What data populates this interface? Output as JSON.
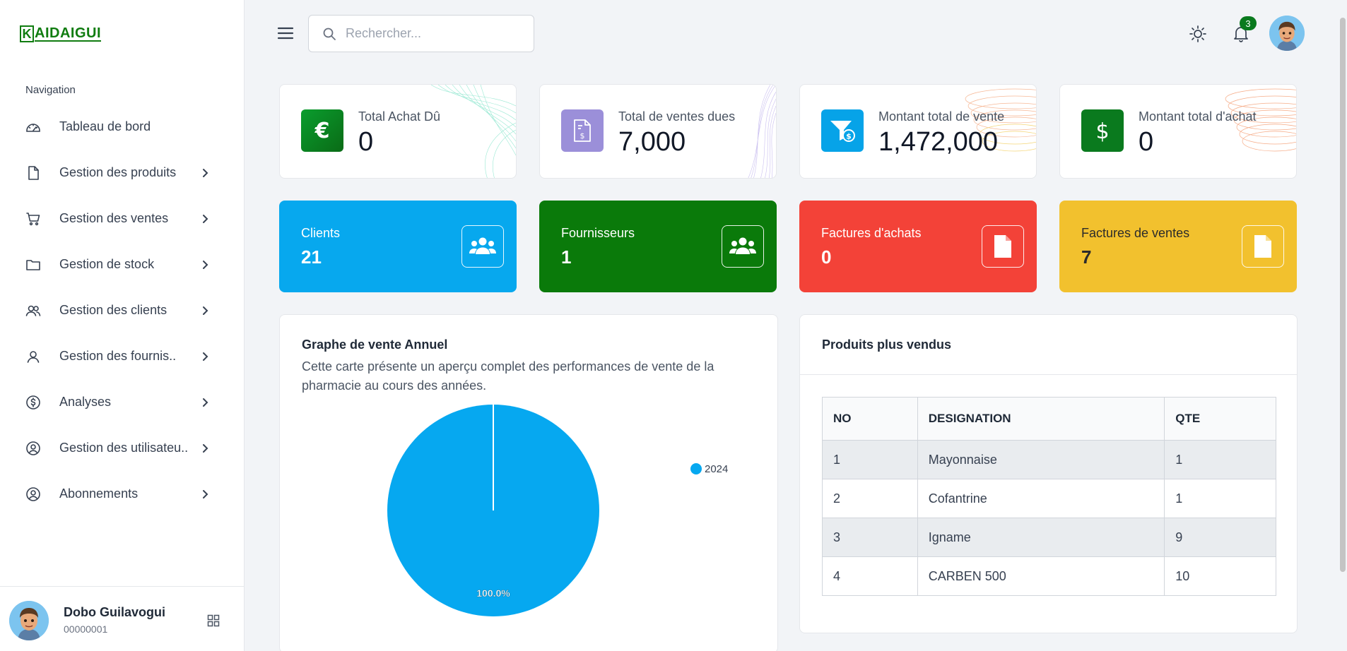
{
  "logo": {
    "letter": "K",
    "text": "AIDAIGUI"
  },
  "navigation": {
    "title": "Navigation",
    "items": [
      {
        "label": "Tableau de bord",
        "icon": "dashboard-icon",
        "has_chevron": false
      },
      {
        "label": "Gestion des produits",
        "icon": "file-icon",
        "has_chevron": true
      },
      {
        "label": "Gestion des ventes",
        "icon": "cart-icon",
        "has_chevron": true
      },
      {
        "label": "Gestion de stock",
        "icon": "folder-icon",
        "has_chevron": true
      },
      {
        "label": "Gestion des clients",
        "icon": "users-icon",
        "has_chevron": true
      },
      {
        "label": "Gestion des fournis..",
        "icon": "user-icon",
        "has_chevron": true
      },
      {
        "label": "Analyses",
        "icon": "dollar-circle-icon",
        "has_chevron": true
      },
      {
        "label": "Gestion des utilisateu..",
        "icon": "user-circle-icon",
        "has_chevron": true
      },
      {
        "label": "Abonnements",
        "icon": "user-circle-icon",
        "has_chevron": true
      }
    ]
  },
  "user": {
    "name": "Dobo Guilavogui",
    "id": "00000001"
  },
  "header": {
    "search_placeholder": "Rechercher...",
    "notification_count": "3"
  },
  "stats": [
    {
      "label": "Total Achat Dû",
      "value": "0",
      "icon": "euro-icon",
      "color": "#0a7a1e"
    },
    {
      "label": "Total de ventes dues",
      "value": "7,000",
      "icon": "invoice-icon",
      "color": "#9b8fd9"
    },
    {
      "label": "Montant total de vente",
      "value": "1,472,000",
      "icon": "filter-dollar-icon",
      "color": "#06a3e8"
    },
    {
      "label": "Montant total d'achat",
      "value": "0",
      "icon": "dollar-icon",
      "color": "#0a7a1e"
    }
  ],
  "summary_cards": [
    {
      "label": "Clients",
      "value": "21",
      "icon": "group-icon",
      "bg": "#07a8ee"
    },
    {
      "label": "Fournisseurs",
      "value": "1",
      "icon": "group-icon",
      "bg": "#0a7a0a"
    },
    {
      "label": "Factures d'achats",
      "value": "0",
      "icon": "document-icon",
      "bg": "#f34238"
    },
    {
      "label": "Factures de ventes",
      "value": "7",
      "icon": "document-icon",
      "bg": "#f2c12e"
    }
  ],
  "chart_panel": {
    "title": "Graphe de vente Annuel",
    "description": "Cette carte présente un aperçu complet des performances de vente de la pharmacie au cours des années."
  },
  "chart_data": {
    "type": "pie",
    "categories": [
      "2024"
    ],
    "values": [
      100
    ],
    "labels": [
      "100.0%"
    ],
    "colors": [
      "#06a8f0"
    ],
    "legend": "right"
  },
  "top_products": {
    "title": "Produits plus vendus",
    "columns": [
      "NO",
      "DESIGNATION",
      "QTE"
    ],
    "rows": [
      [
        "1",
        "Mayonnaise",
        "1"
      ],
      [
        "2",
        "Cofantrine",
        "1"
      ],
      [
        "3",
        "Igname",
        "9"
      ],
      [
        "4",
        "CARBEN 500",
        "10"
      ]
    ]
  }
}
